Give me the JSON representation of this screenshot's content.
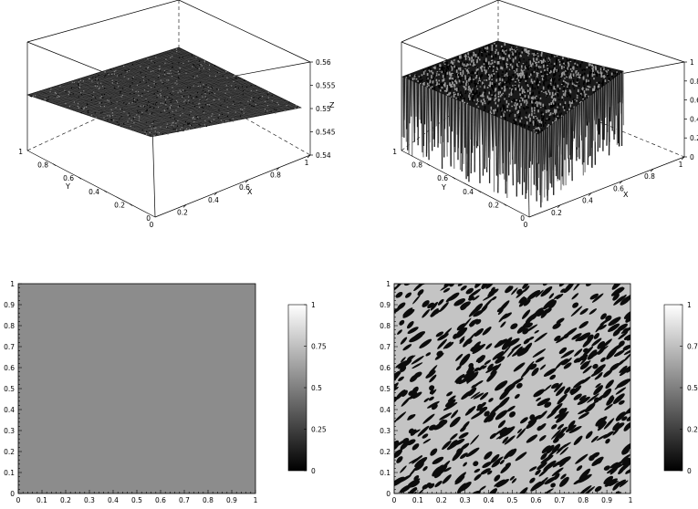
{
  "chart_data": [
    {
      "type": "surface",
      "panel": "top-left",
      "xlabel": "X",
      "ylabel": "Y",
      "zlabel": "Z",
      "x_ticks": [
        "0",
        "0.2",
        "0.4",
        "0.6",
        "0.8",
        "1"
      ],
      "y_ticks": [
        "0",
        "0.2",
        "0.4",
        "0.6",
        "0.8",
        "1"
      ],
      "z_ticks": [
        "0.54",
        "0.545",
        "0.55",
        "0.555",
        "0.56"
      ],
      "xlim": [
        0,
        1
      ],
      "ylim": [
        0,
        1
      ],
      "zlim": [
        0.54,
        0.56
      ],
      "z_mean": 0.55,
      "z_noise_range": [
        0.549,
        0.551
      ],
      "colors": {
        "surface": "#222222",
        "mesh": "#6a6a6a",
        "box": "#000000"
      }
    },
    {
      "type": "surface",
      "panel": "top-right",
      "xlabel": "X",
      "ylabel": "Y",
      "x_ticks": [
        "0",
        "0.2",
        "0.4",
        "0.6",
        "0.8",
        "1"
      ],
      "y_ticks": [
        "0",
        "0.2",
        "0.4",
        "0.6",
        "0.8",
        "1"
      ],
      "z_ticks": [
        "0",
        "0.2",
        "0.4",
        "0.6",
        "0.8",
        "1"
      ],
      "xlim": [
        0,
        1
      ],
      "ylim": [
        0,
        1
      ],
      "zlim": [
        0,
        1
      ],
      "z_levels": [
        0,
        0.8
      ],
      "colors": {
        "surface": "#1a1a1a",
        "mesh": "#7a7a7a",
        "box": "#000000"
      }
    },
    {
      "type": "heatmap",
      "panel": "bottom-left",
      "x_ticks": [
        "0",
        "0.1",
        "0.2",
        "0.3",
        "0.4",
        "0.5",
        "0.6",
        "0.7",
        "0.8",
        "0.9",
        "1"
      ],
      "y_ticks": [
        "0",
        "0.1",
        "0.2",
        "0.3",
        "0.4",
        "0.5",
        "0.6",
        "0.7",
        "0.8",
        "0.9",
        "1"
      ],
      "xlim": [
        0,
        1
      ],
      "ylim": [
        0,
        1
      ],
      "value_uniform": 0.55,
      "colorbar_ticks": [
        "0",
        "0.25",
        "0.5",
        "0.75",
        "1"
      ],
      "colorbar_range": [
        0,
        1
      ],
      "colormap": "gray",
      "colors": {
        "field": "#8c8c8c"
      }
    },
    {
      "type": "heatmap",
      "panel": "bottom-right",
      "x_ticks": [
        "0",
        "0.1",
        "0.2",
        "0.3",
        "0.4",
        "0.5",
        "0.6",
        "0.7",
        "0.8",
        "0.9",
        "1"
      ],
      "y_ticks": [
        "0",
        "0.1",
        "0.2",
        "0.3",
        "0.4",
        "0.5",
        "0.6",
        "0.7",
        "0.8",
        "0.9",
        "1"
      ],
      "xlim": [
        0,
        1
      ],
      "ylim": [
        0,
        1
      ],
      "phase_values": [
        0,
        0.75
      ],
      "colorbar_ticks": [
        "0",
        "0.25",
        "0.5",
        "0.75",
        "1"
      ],
      "colorbar_range": [
        0,
        1
      ],
      "colormap": "gray",
      "colors": {
        "light_phase": "#c4c4c4",
        "dark_phase": "#0c0c0c"
      }
    }
  ]
}
